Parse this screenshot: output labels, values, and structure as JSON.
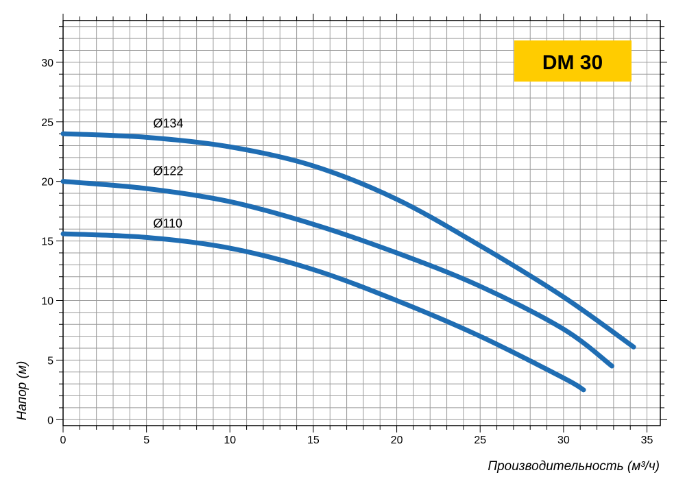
{
  "chart_data": {
    "type": "line",
    "title": "DM 30",
    "xlabel": "Производительность (м³/ч)",
    "ylabel": "Напор (м)",
    "xlim": [
      0,
      35.8
    ],
    "ylim": [
      -0.5,
      33.5
    ],
    "grid": true,
    "x_ticks": [
      0,
      5,
      10,
      15,
      20,
      25,
      30,
      35
    ],
    "y_ticks": [
      0,
      5,
      10,
      15,
      20,
      25,
      30
    ],
    "accent_color": "#1f6db3",
    "badge_color": "#ffcc00",
    "series": [
      {
        "name": "Ø134",
        "points": [
          [
            0,
            24.0
          ],
          [
            5,
            23.7
          ],
          [
            10,
            22.9
          ],
          [
            15,
            21.3
          ],
          [
            20,
            18.5
          ],
          [
            25,
            14.6
          ],
          [
            30,
            10.3
          ],
          [
            34.2,
            6.1
          ]
        ]
      },
      {
        "name": "Ø122",
        "points": [
          [
            0,
            20.0
          ],
          [
            5,
            19.4
          ],
          [
            10,
            18.3
          ],
          [
            15,
            16.4
          ],
          [
            20,
            14.0
          ],
          [
            25,
            11.2
          ],
          [
            30,
            7.6
          ],
          [
            32.9,
            4.5
          ]
        ]
      },
      {
        "name": "Ø110",
        "points": [
          [
            0,
            15.6
          ],
          [
            5,
            15.3
          ],
          [
            10,
            14.4
          ],
          [
            15,
            12.6
          ],
          [
            20,
            10.0
          ],
          [
            25,
            7.0
          ],
          [
            30,
            3.5
          ],
          [
            31.2,
            2.5
          ]
        ]
      }
    ]
  }
}
